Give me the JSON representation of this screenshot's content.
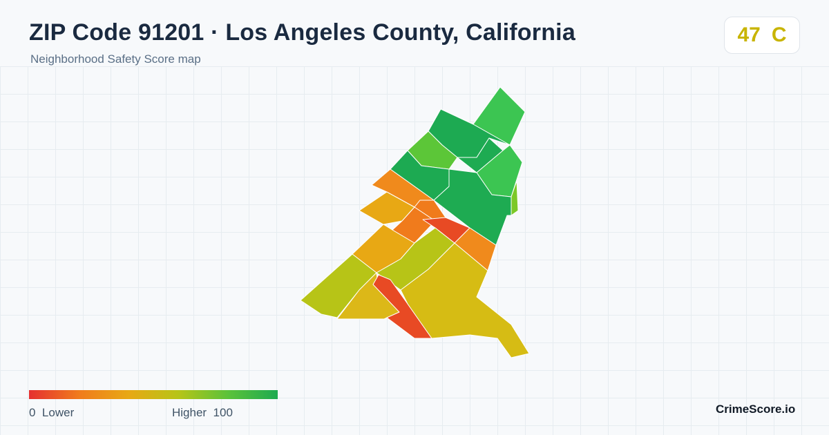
{
  "header": {
    "title": "ZIP Code 91201 · Los Angeles County, California",
    "subtitle": "Neighborhood Safety Score map"
  },
  "score": {
    "value": "47",
    "grade": "C",
    "color": "#c8b400"
  },
  "legend": {
    "min_value": "0",
    "min_label": "Lower",
    "max_label": "Higher",
    "max_value": "100",
    "gradient_colors": [
      "#e53030",
      "#f07b1c",
      "#e8a814",
      "#b7c417",
      "#5bc23a",
      "#1eaa50"
    ]
  },
  "brand": "CrimeScore.io",
  "colors": {
    "background": "#f7f9fb",
    "grid_line": "#e6ecf0",
    "title": "#1a2a40",
    "subtitle": "#5a6f86"
  }
}
